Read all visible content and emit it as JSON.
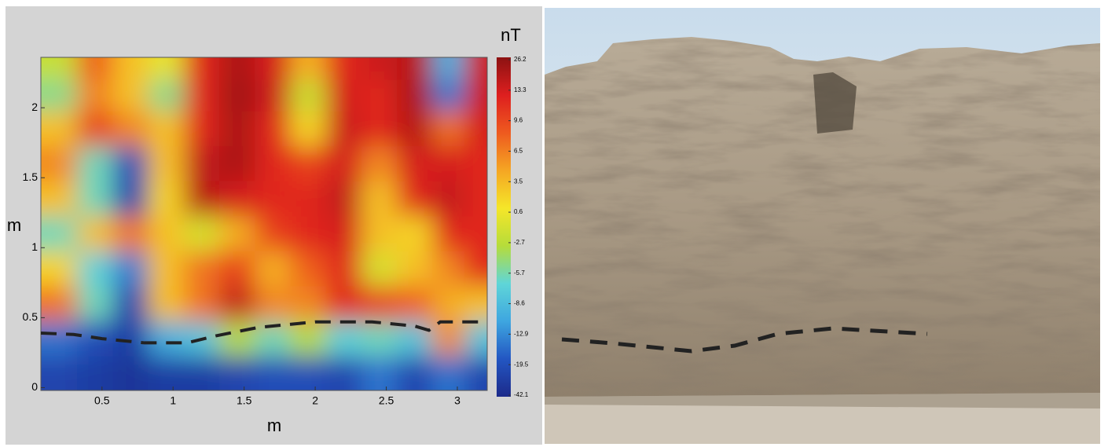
{
  "chart_data": {
    "type": "heatmap",
    "x_label": "m",
    "y_label": "m",
    "xlim": [
      0.07,
      3.21
    ],
    "ylim": [
      -0.02,
      2.36
    ],
    "xticks": [
      0.5,
      1,
      1.5,
      2,
      2.5,
      3
    ],
    "yticks": [
      0,
      0.5,
      1,
      1.5,
      2
    ],
    "x": [
      0.2,
      0.45,
      0.7,
      0.95,
      1.2,
      1.45,
      1.7,
      1.95,
      2.2,
      2.45,
      2.7,
      2.95,
      3.15
    ],
    "y": [
      2.3,
      2.1,
      1.85,
      1.6,
      1.35,
      1.1,
      0.85,
      0.6,
      0.35,
      0.1
    ],
    "z": [
      [
        -2,
        8,
        3,
        0,
        12,
        20,
        13,
        4,
        12,
        14,
        18,
        -10,
        14
      ],
      [
        -5,
        6,
        3,
        -5,
        12,
        22,
        14,
        -2,
        13,
        12,
        20,
        -15,
        14
      ],
      [
        3,
        10,
        6,
        3,
        12,
        20,
        12,
        2,
        14,
        12,
        18,
        7,
        13
      ],
      [
        6,
        -6,
        -20,
        3,
        16,
        20,
        12,
        10,
        13,
        6,
        13,
        13,
        12
      ],
      [
        3,
        -6,
        -25,
        2,
        18,
        13,
        12,
        12,
        16,
        3,
        12,
        16,
        12
      ],
      [
        -6,
        3,
        7,
        3,
        -1,
        4,
        10,
        12,
        13,
        3,
        2,
        12,
        12
      ],
      [
        2,
        -7,
        -14,
        3,
        7,
        10,
        4,
        8,
        12,
        -1,
        3,
        6,
        12
      ],
      [
        7,
        -6,
        -25,
        3,
        7,
        16,
        6,
        6,
        12,
        10,
        8,
        4,
        3
      ],
      [
        -15,
        -20,
        -30,
        -10,
        -8,
        -3,
        -6,
        -3,
        -7,
        -6,
        -8,
        6,
        -8
      ],
      [
        -25,
        -30,
        -35,
        -30,
        -30,
        -25,
        -20,
        -20,
        -25,
        -15,
        -25,
        -15,
        -25
      ]
    ],
    "colorbar_title": "nT",
    "colorbar_ticks": [
      26.2,
      13.3,
      9.6,
      6.5,
      3.5,
      0.6,
      -2.7,
      -5.7,
      -8.6,
      -12.9,
      -19.5,
      -42.1
    ],
    "colormap": [
      "#1c2a8a",
      "#2356c2",
      "#3ea6e0",
      "#5fd6d8",
      "#b6dc3a",
      "#f5e629",
      "#f5a623",
      "#ee5a1f",
      "#de1f1f",
      "#8c1212"
    ],
    "boundary": {
      "x": [
        0.07,
        0.3,
        0.5,
        0.8,
        1.1,
        1.3,
        1.6,
        2.0,
        2.4,
        2.7,
        2.8,
        2.88,
        3.21
      ],
      "y": [
        0.39,
        0.38,
        0.35,
        0.32,
        0.32,
        0.37,
        0.43,
        0.47,
        0.47,
        0.44,
        0.41,
        0.47,
        0.47
      ]
    }
  }
}
